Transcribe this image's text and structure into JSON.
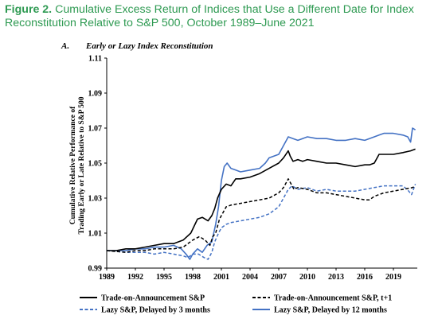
{
  "figure": {
    "label": "Figure 2.",
    "caption": "Cumulative Excess Return of Indices that Use a Different Date for Index Reconstitution Relative to S&P 500, October 1989–June 2021"
  },
  "colors": {
    "title": "#2e9a52",
    "black": "#000000",
    "blue": "#4472c4"
  },
  "chart_data": {
    "type": "line",
    "panel_label": "A.",
    "title": "Early or Lazy Index Reconstitution",
    "ylabel": "Cumulative Relative Performance of Trading Early or Late Relative to S&P 500",
    "xlabel": "",
    "xlim": [
      1989,
      2021.5
    ],
    "ylim": [
      0.99,
      1.11
    ],
    "xticks": [
      "1989",
      "1992",
      "1995",
      "1998",
      "2001",
      "2004",
      "2007",
      "2010",
      "2013",
      "2016",
      "2019"
    ],
    "yticks": [
      "0.99",
      "1.01",
      "1.03",
      "1.05",
      "1.07",
      "1.09",
      "1.11"
    ],
    "grid": false,
    "legend_position": "bottom",
    "series": [
      {
        "name": "Trade-on-Announcement S&P",
        "color": "#000000",
        "dash": "solid",
        "x": [
          1989.0,
          1990.0,
          1991.0,
          1992.0,
          1993.0,
          1994.0,
          1995.0,
          1996.0,
          1997.0,
          1997.8,
          1998.5,
          1999.0,
          1999.6,
          2000.0,
          2000.3,
          2000.6,
          2001.0,
          2001.5,
          2002.0,
          2002.5,
          2003.0,
          2004.0,
          2005.0,
          2006.0,
          2007.0,
          2007.5,
          2008.0,
          2008.2,
          2008.5,
          2009.0,
          2009.5,
          2010.0,
          2011.0,
          2012.0,
          2013.0,
          2014.0,
          2015.0,
          2016.0,
          2016.5,
          2017.0,
          2017.5,
          2018.0,
          2019.0,
          2020.0,
          2020.8,
          2021.3
        ],
        "y": [
          1.0,
          1.0,
          1.001,
          1.001,
          1.002,
          1.003,
          1.004,
          1.004,
          1.006,
          1.01,
          1.018,
          1.019,
          1.017,
          1.02,
          1.024,
          1.03,
          1.035,
          1.038,
          1.037,
          1.041,
          1.041,
          1.042,
          1.044,
          1.047,
          1.05,
          1.053,
          1.057,
          1.054,
          1.051,
          1.052,
          1.051,
          1.052,
          1.051,
          1.05,
          1.05,
          1.049,
          1.048,
          1.049,
          1.049,
          1.05,
          1.055,
          1.055,
          1.055,
          1.056,
          1.057,
          1.058
        ]
      },
      {
        "name": "Trade-on-Announcement S&P, t+1",
        "color": "#000000",
        "dash": "dashed",
        "x": [
          1989.0,
          1991.0,
          1992.0,
          1993.0,
          1994.0,
          1995.0,
          1996.0,
          1997.0,
          1998.0,
          1998.7,
          1999.3,
          1999.8,
          2000.1,
          2000.4,
          2000.8,
          2001.2,
          2001.5,
          2002.0,
          2003.0,
          2004.0,
          2005.0,
          2006.0,
          2007.0,
          2007.5,
          2008.0,
          2008.3,
          2008.6,
          2009.0,
          2010.0,
          2011.0,
          2012.0,
          2013.0,
          2014.0,
          2015.0,
          2016.0,
          2016.5,
          2017.0,
          2018.0,
          2019.0,
          2020.0,
          2021.0,
          2021.3
        ],
        "y": [
          1.0,
          0.999,
          1.0,
          1.0,
          1.001,
          1.001,
          1.001,
          1.002,
          1.006,
          1.008,
          1.006,
          1.003,
          1.008,
          1.01,
          1.018,
          1.022,
          1.025,
          1.026,
          1.027,
          1.028,
          1.029,
          1.03,
          1.033,
          1.036,
          1.041,
          1.038,
          1.035,
          1.036,
          1.035,
          1.033,
          1.033,
          1.032,
          1.031,
          1.03,
          1.029,
          1.029,
          1.031,
          1.033,
          1.034,
          1.035,
          1.036,
          1.037
        ]
      },
      {
        "name": "Lazy S&P, Delayed by 3 months",
        "color": "#4472c4",
        "dash": "dashed",
        "x": [
          1989.0,
          1991.0,
          1992.0,
          1993.0,
          1994.0,
          1995.0,
          1996.0,
          1997.0,
          1997.5,
          1998.0,
          1998.6,
          1999.2,
          1999.6,
          2000.0,
          2000.3,
          2000.7,
          2001.0,
          2001.5,
          2002.0,
          2003.0,
          2004.0,
          2005.0,
          2006.0,
          2007.0,
          2007.5,
          2008.0,
          2008.4,
          2009.0,
          2010.0,
          2011.0,
          2012.0,
          2013.0,
          2014.0,
          2015.0,
          2016.0,
          2017.0,
          2018.0,
          2019.0,
          2020.0,
          2020.6,
          2020.9,
          2021.3
        ],
        "y": [
          1.0,
          0.999,
          0.999,
          0.999,
          0.998,
          0.999,
          0.998,
          0.997,
          0.996,
          0.998,
          0.998,
          0.996,
          0.995,
          0.999,
          1.005,
          1.01,
          1.013,
          1.015,
          1.016,
          1.017,
          1.018,
          1.019,
          1.021,
          1.025,
          1.03,
          1.035,
          1.037,
          1.035,
          1.036,
          1.034,
          1.035,
          1.034,
          1.034,
          1.034,
          1.035,
          1.036,
          1.037,
          1.037,
          1.037,
          1.034,
          1.032,
          1.038
        ]
      },
      {
        "name": "Lazy S&P, Delayed by 12 months",
        "color": "#4472c4",
        "dash": "solid",
        "x": [
          1989.0,
          1990.0,
          1991.0,
          1992.0,
          1993.0,
          1994.0,
          1995.0,
          1996.0,
          1996.8,
          1997.3,
          1997.7,
          1998.0,
          1998.5,
          1999.0,
          1999.5,
          2000.0,
          2000.2,
          2000.4,
          2000.7,
          2001.0,
          2001.3,
          2001.6,
          2002.0,
          2002.5,
          2003.0,
          2004.0,
          2005.0,
          2005.6,
          2006.0,
          2007.0,
          2007.5,
          2008.0,
          2008.5,
          2009.0,
          2010.0,
          2011.0,
          2012.0,
          2013.0,
          2014.0,
          2015.0,
          2016.0,
          2017.0,
          2017.5,
          2018.0,
          2019.0,
          2020.0,
          2020.5,
          2020.8,
          2021.0,
          2021.3
        ],
        "y": [
          1.0,
          1.0,
          1.0,
          1.001,
          1.001,
          1.002,
          1.002,
          1.003,
          1.001,
          0.998,
          0.995,
          0.998,
          1.001,
          0.999,
          1.003,
          1.005,
          1.01,
          1.015,
          1.025,
          1.04,
          1.048,
          1.05,
          1.047,
          1.046,
          1.045,
          1.046,
          1.047,
          1.05,
          1.053,
          1.055,
          1.06,
          1.065,
          1.064,
          1.063,
          1.065,
          1.064,
          1.064,
          1.063,
          1.063,
          1.064,
          1.063,
          1.065,
          1.066,
          1.067,
          1.067,
          1.066,
          1.065,
          1.062,
          1.07,
          1.069
        ]
      }
    ]
  }
}
